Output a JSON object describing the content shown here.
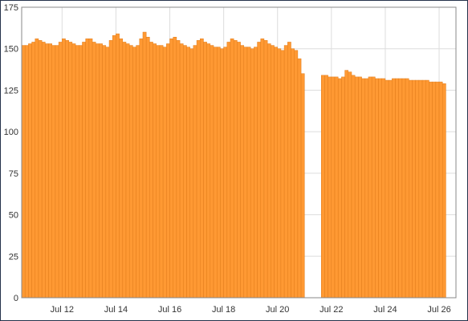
{
  "chart_data": {
    "type": "bar",
    "title": "",
    "xlabel": "",
    "ylabel": "",
    "ylim": [
      0,
      175
    ],
    "y_ticks": [
      0,
      25,
      50,
      75,
      100,
      125,
      150,
      175
    ],
    "x_range": [
      "2024-07-10T12:00",
      "2024-07-26T15:00"
    ],
    "x_ticks": [
      {
        "date": "2024-07-12",
        "label": "Jul 12"
      },
      {
        "date": "2024-07-14",
        "label": "Jul 14"
      },
      {
        "date": "2024-07-16",
        "label": "Jul 16"
      },
      {
        "date": "2024-07-18",
        "label": "Jul 18"
      },
      {
        "date": "2024-07-20",
        "label": "Jul 20"
      },
      {
        "date": "2024-07-22",
        "label": "Jul 22"
      },
      {
        "date": "2024-07-24",
        "label": "Jul 24"
      },
      {
        "date": "2024-07-26",
        "label": "Jul 26"
      }
    ],
    "grid": true,
    "bar_color": "#ff9933",
    "bar_edge_color": "#e07c1a",
    "grid_color": "#dddddd",
    "series": [
      {
        "start": "2024-07-10T12:00",
        "interval_hours": 3,
        "values": [
          152,
          152,
          153,
          154,
          156,
          155,
          154,
          153,
          153,
          152,
          152,
          154,
          156,
          155,
          154,
          153,
          152,
          152,
          154,
          156,
          156,
          154,
          153,
          153,
          152,
          151,
          155,
          158,
          159,
          156,
          154,
          153,
          152,
          151,
          152,
          156,
          160,
          157,
          154,
          153,
          152,
          152,
          151,
          153,
          156,
          157,
          155,
          153,
          152,
          151,
          150,
          152,
          155,
          156,
          154,
          153,
          152,
          151,
          151,
          150,
          151,
          154,
          156,
          155,
          154,
          152,
          151,
          151,
          150,
          151,
          154,
          156,
          155,
          153,
          152,
          151,
          150,
          149,
          152,
          154,
          150,
          149,
          144,
          135
        ]
      },
      {
        "start": "2024-07-21T15:00",
        "interval_hours": 3,
        "values": [
          134,
          134,
          133,
          133,
          133,
          132,
          133,
          137,
          136,
          134,
          133,
          133,
          132,
          132,
          133,
          133,
          132,
          132,
          132,
          131,
          131,
          132,
          132,
          132,
          132,
          132,
          131,
          131,
          131,
          131,
          131,
          131,
          130,
          130,
          130,
          130,
          129
        ]
      }
    ]
  }
}
